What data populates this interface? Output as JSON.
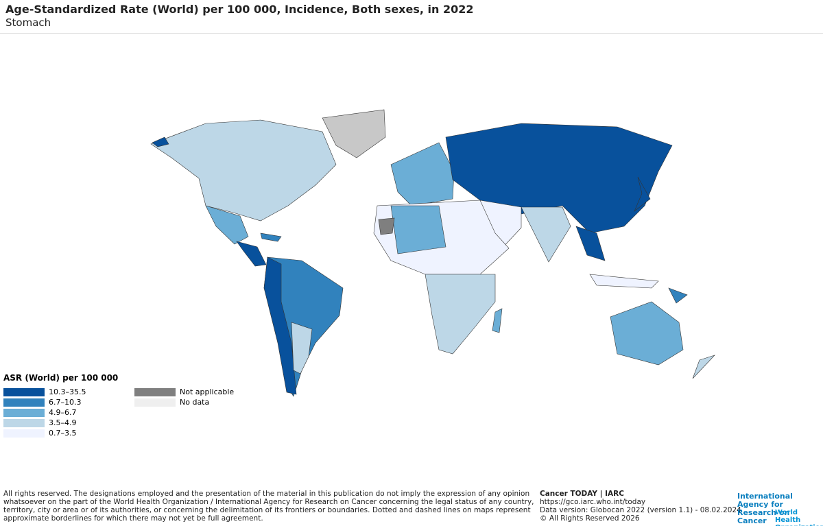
{
  "header": {
    "title": "Age-Standardized Rate (World) per 100 000, Incidence, Both sexes, in 2022",
    "subtitle": "Stomach"
  },
  "legend": {
    "title": "ASR (World) per 100 000",
    "classes": [
      {
        "label": "10.3–35.5",
        "color": "#08519c"
      },
      {
        "label": "6.7–10.3",
        "color": "#3182bd"
      },
      {
        "label": "4.9–6.7",
        "color": "#6baed6"
      },
      {
        "label": "3.5–4.9",
        "color": "#bdd7e7"
      },
      {
        "label": "0.7–3.5",
        "color": "#eff3ff"
      }
    ],
    "extra": [
      {
        "label": "Not applicable",
        "color": "#7f7f7f"
      },
      {
        "label": "No data",
        "color": "#efefef"
      }
    ]
  },
  "footer": {
    "disclaimer": "All rights reserved. The designations employed and the presentation of the material in this publication do not imply the expression of any opinion whatsoever on the part of the World Health Organization / International Agency for Research on Cancer concerning the legal status of any country, territory, city or area or of its authorities, or concerning the delimitation of its frontiers or boundaries. Dotted and dashed lines on maps represent approximate borderlines for which there may not yet be full agreement.",
    "source": [
      "Cancer TODAY | IARC",
      "https://gco.iarc.who.int/today",
      "Data version: Globocan 2022 (version 1.1) - 08.02.2024",
      "© All Rights Reserved 2026"
    ],
    "logos": [
      "International Agency for Research on Cancer",
      "World Health Organization"
    ]
  }
}
